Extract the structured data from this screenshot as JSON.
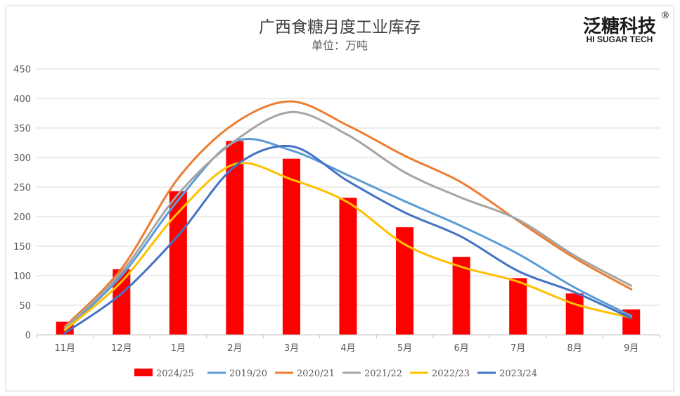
{
  "brand": {
    "name": "泛糖科技",
    "registered": "®",
    "tagline": "HI SUGAR TECH",
    "color": "#1a1a1a"
  },
  "colors": {
    "frame": "#d9d9d9",
    "grid": "#d9d9d9",
    "axis": "#bfbfbf",
    "text": "#595959",
    "title": "#404040"
  },
  "chart_data": {
    "type": "bar",
    "title": "广西食糖月度工业库存",
    "subtitle": "单位：万吨",
    "xlabel": "",
    "ylabel": "",
    "ylim": [
      0,
      450
    ],
    "yticks": [
      0,
      50,
      100,
      150,
      200,
      250,
      300,
      350,
      400,
      450
    ],
    "categories": [
      "11月",
      "12月",
      "1月",
      "2月",
      "3月",
      "4月",
      "5月",
      "6月",
      "7月",
      "8月",
      "9月"
    ],
    "grid": true,
    "legend_position": "bottom",
    "series": [
      {
        "name": "2024/25",
        "kind": "bar",
        "color": "#ff0000",
        "values": [
          22,
          111,
          243,
          328,
          298,
          232,
          182,
          132,
          96,
          70,
          43
        ]
      },
      {
        "name": "2019/20",
        "kind": "line",
        "color": "#5b9bd5",
        "values": [
          8,
          100,
          228,
          327,
          312,
          270,
          226,
          184,
          137,
          80,
          32
        ]
      },
      {
        "name": "2020/21",
        "kind": "line",
        "color": "#ed7d31",
        "values": [
          14,
          112,
          265,
          358,
          395,
          354,
          303,
          258,
          193,
          130,
          77
        ]
      },
      {
        "name": "2021/22",
        "kind": "line",
        "color": "#a5a5a5",
        "values": [
          11,
          106,
          238,
          328,
          377,
          338,
          275,
          232,
          195,
          134,
          83
        ]
      },
      {
        "name": "2022/23",
        "kind": "line",
        "color": "#ffc000",
        "values": [
          8,
          90,
          207,
          289,
          263,
          224,
          153,
          115,
          90,
          52,
          29
        ]
      },
      {
        "name": "2023/24",
        "kind": "line",
        "color": "#4472c4",
        "values": [
          3,
          70,
          168,
          285,
          319,
          260,
          207,
          166,
          108,
          72,
          28
        ]
      }
    ]
  }
}
